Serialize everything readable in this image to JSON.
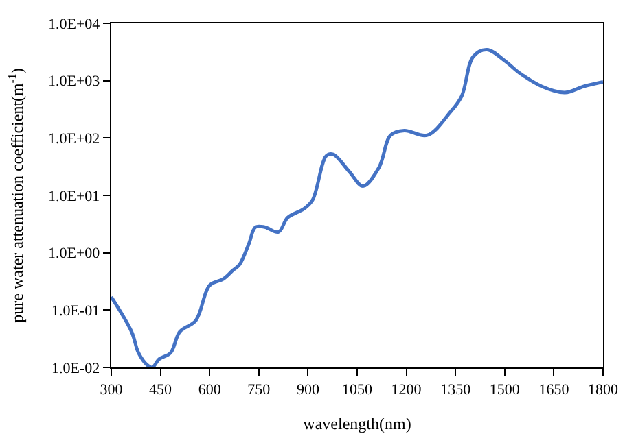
{
  "chart_data": {
    "type": "line",
    "xlabel": "wavelength(nm)",
    "ylabel": "pure water attenuation coefficient(m$^{-1}$)",
    "log": "y",
    "marker": "none",
    "line_style": "solid",
    "xlim": [
      300,
      1800
    ],
    "xticks": [
      300,
      450,
      600,
      750,
      900,
      1050,
      1200,
      1350,
      1500,
      1650,
      1800
    ],
    "ylim": [
      0.01,
      10000
    ],
    "yticks": [
      {
        "value": 0.01,
        "label": "1.0E-02"
      },
      {
        "value": 0.1,
        "label": "1.0E-01"
      },
      {
        "value": 1,
        "label": "1.0E+00"
      },
      {
        "value": 10,
        "label": "1.0E+01"
      },
      {
        "value": 100,
        "label": "1.0E+02"
      },
      {
        "value": 1000,
        "label": "1.0E+03"
      },
      {
        "value": 10000,
        "label": "1.0E+04"
      }
    ],
    "x": [
      300,
      362,
      383,
      410,
      425,
      446,
      481,
      509,
      558,
      600,
      642,
      670,
      691,
      719,
      740,
      768,
      810,
      838,
      887,
      914,
      956,
      977,
      1026,
      1068,
      1117,
      1152,
      1194,
      1264,
      1334,
      1369,
      1404,
      1446,
      1502,
      1544,
      1614,
      1684,
      1740,
      1800
    ],
    "series": [
      {
        "color": "#4472c4",
        "values": [
          0.17,
          0.042,
          0.018,
          0.011,
          0.01,
          0.014,
          0.018,
          0.042,
          0.066,
          0.27,
          0.35,
          0.49,
          0.62,
          1.4,
          2.8,
          2.8,
          2.3,
          4.1,
          5.8,
          8.3,
          49,
          52,
          26,
          14.5,
          31,
          112,
          135,
          112,
          282,
          540,
          2630,
          3470,
          2190,
          1380,
          790,
          620,
          790,
          950
        ]
      }
    ]
  }
}
